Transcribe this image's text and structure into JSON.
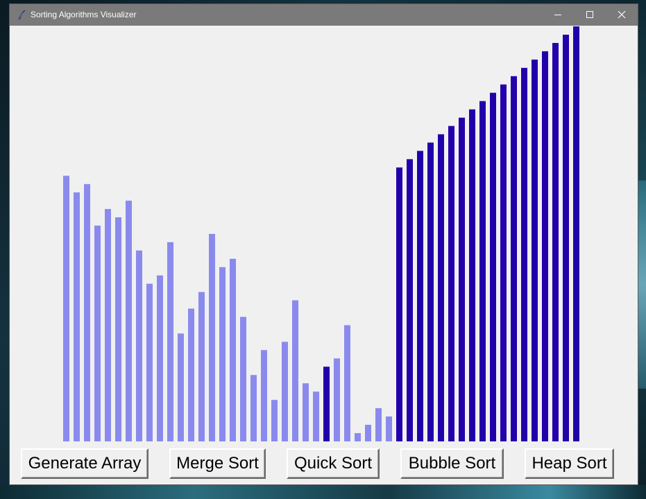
{
  "window": {
    "title": "Sorting Algorithms Visualizer",
    "icons": {
      "app": "feather-icon",
      "minimize": "minimize-icon",
      "maximize": "maximize-icon",
      "close": "close-icon"
    }
  },
  "colors": {
    "unsorted_bar": "#8a8aee",
    "highlight_bar": "#2200aa",
    "sorted_bar": "#2200aa",
    "canvas_bg": "#f0f0f0"
  },
  "chart_data": {
    "type": "bar",
    "ylim": [
      0,
      100
    ],
    "values": [
      64,
      60,
      62,
      52,
      56,
      54,
      58,
      46,
      38,
      40,
      48,
      26,
      32,
      36,
      50,
      42,
      44,
      30,
      16,
      22,
      10,
      24,
      34,
      14,
      12,
      18,
      20,
      28,
      2,
      4,
      8,
      6,
      66,
      68,
      70,
      72,
      74,
      76,
      78,
      80,
      82,
      84,
      86,
      88,
      90,
      92,
      94,
      96,
      98,
      100
    ],
    "states": [
      "unsorted",
      "unsorted",
      "unsorted",
      "unsorted",
      "unsorted",
      "unsorted",
      "unsorted",
      "unsorted",
      "unsorted",
      "unsorted",
      "unsorted",
      "unsorted",
      "unsorted",
      "unsorted",
      "unsorted",
      "unsorted",
      "unsorted",
      "unsorted",
      "unsorted",
      "unsorted",
      "unsorted",
      "unsorted",
      "unsorted",
      "unsorted",
      "unsorted",
      "highlight",
      "unsorted",
      "unsorted",
      "unsorted",
      "unsorted",
      "unsorted",
      "unsorted",
      "sorted",
      "sorted",
      "sorted",
      "sorted",
      "sorted",
      "sorted",
      "sorted",
      "sorted",
      "sorted",
      "sorted",
      "sorted",
      "sorted",
      "sorted",
      "sorted",
      "sorted",
      "sorted",
      "sorted",
      "sorted"
    ]
  },
  "buttons": {
    "generate_label": "Generate Array",
    "merge_label": "Merge Sort",
    "quick_label": "Quick Sort",
    "bubble_label": "Bubble Sort",
    "heap_label": "Heap Sort"
  }
}
